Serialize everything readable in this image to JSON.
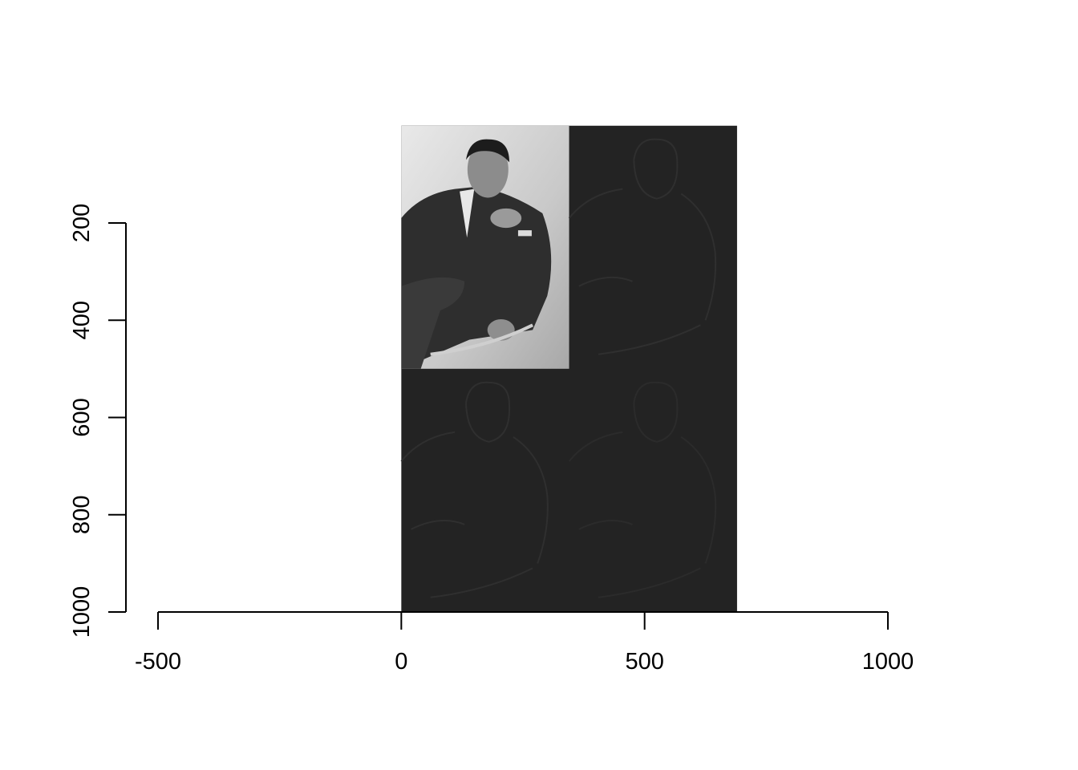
{
  "chart_data": {
    "type": "image",
    "description_free": true,
    "xlim": [
      -500,
      1000
    ],
    "ylim": [
      1000,
      200
    ],
    "x_axis": {
      "ticks": [
        -500,
        0,
        500,
        1000
      ],
      "tick_labels": [
        "-500",
        "0",
        "500",
        "1000"
      ]
    },
    "y_axis": {
      "ticks": [
        200,
        400,
        600,
        800,
        1000
      ],
      "tick_labels": [
        "200",
        "400",
        "600",
        "800",
        "1000"
      ],
      "reversed": true
    },
    "raster": {
      "extent_x": [
        0,
        690
      ],
      "extent_y": [
        0,
        1000
      ],
      "background_color": "#232323",
      "panels": [
        {
          "name": "original-photo",
          "x": [
            0,
            345
          ],
          "y": [
            0,
            500
          ]
        },
        {
          "name": "horizontal-detail",
          "x": [
            345,
            690
          ],
          "y": [
            0,
            500
          ]
        },
        {
          "name": "vertical-detail",
          "x": [
            0,
            345
          ],
          "y": [
            500,
            1000
          ]
        },
        {
          "name": "diagonal-detail",
          "x": [
            345,
            690
          ],
          "y": [
            500,
            1000
          ]
        }
      ]
    },
    "grid": false,
    "legend": "none"
  }
}
